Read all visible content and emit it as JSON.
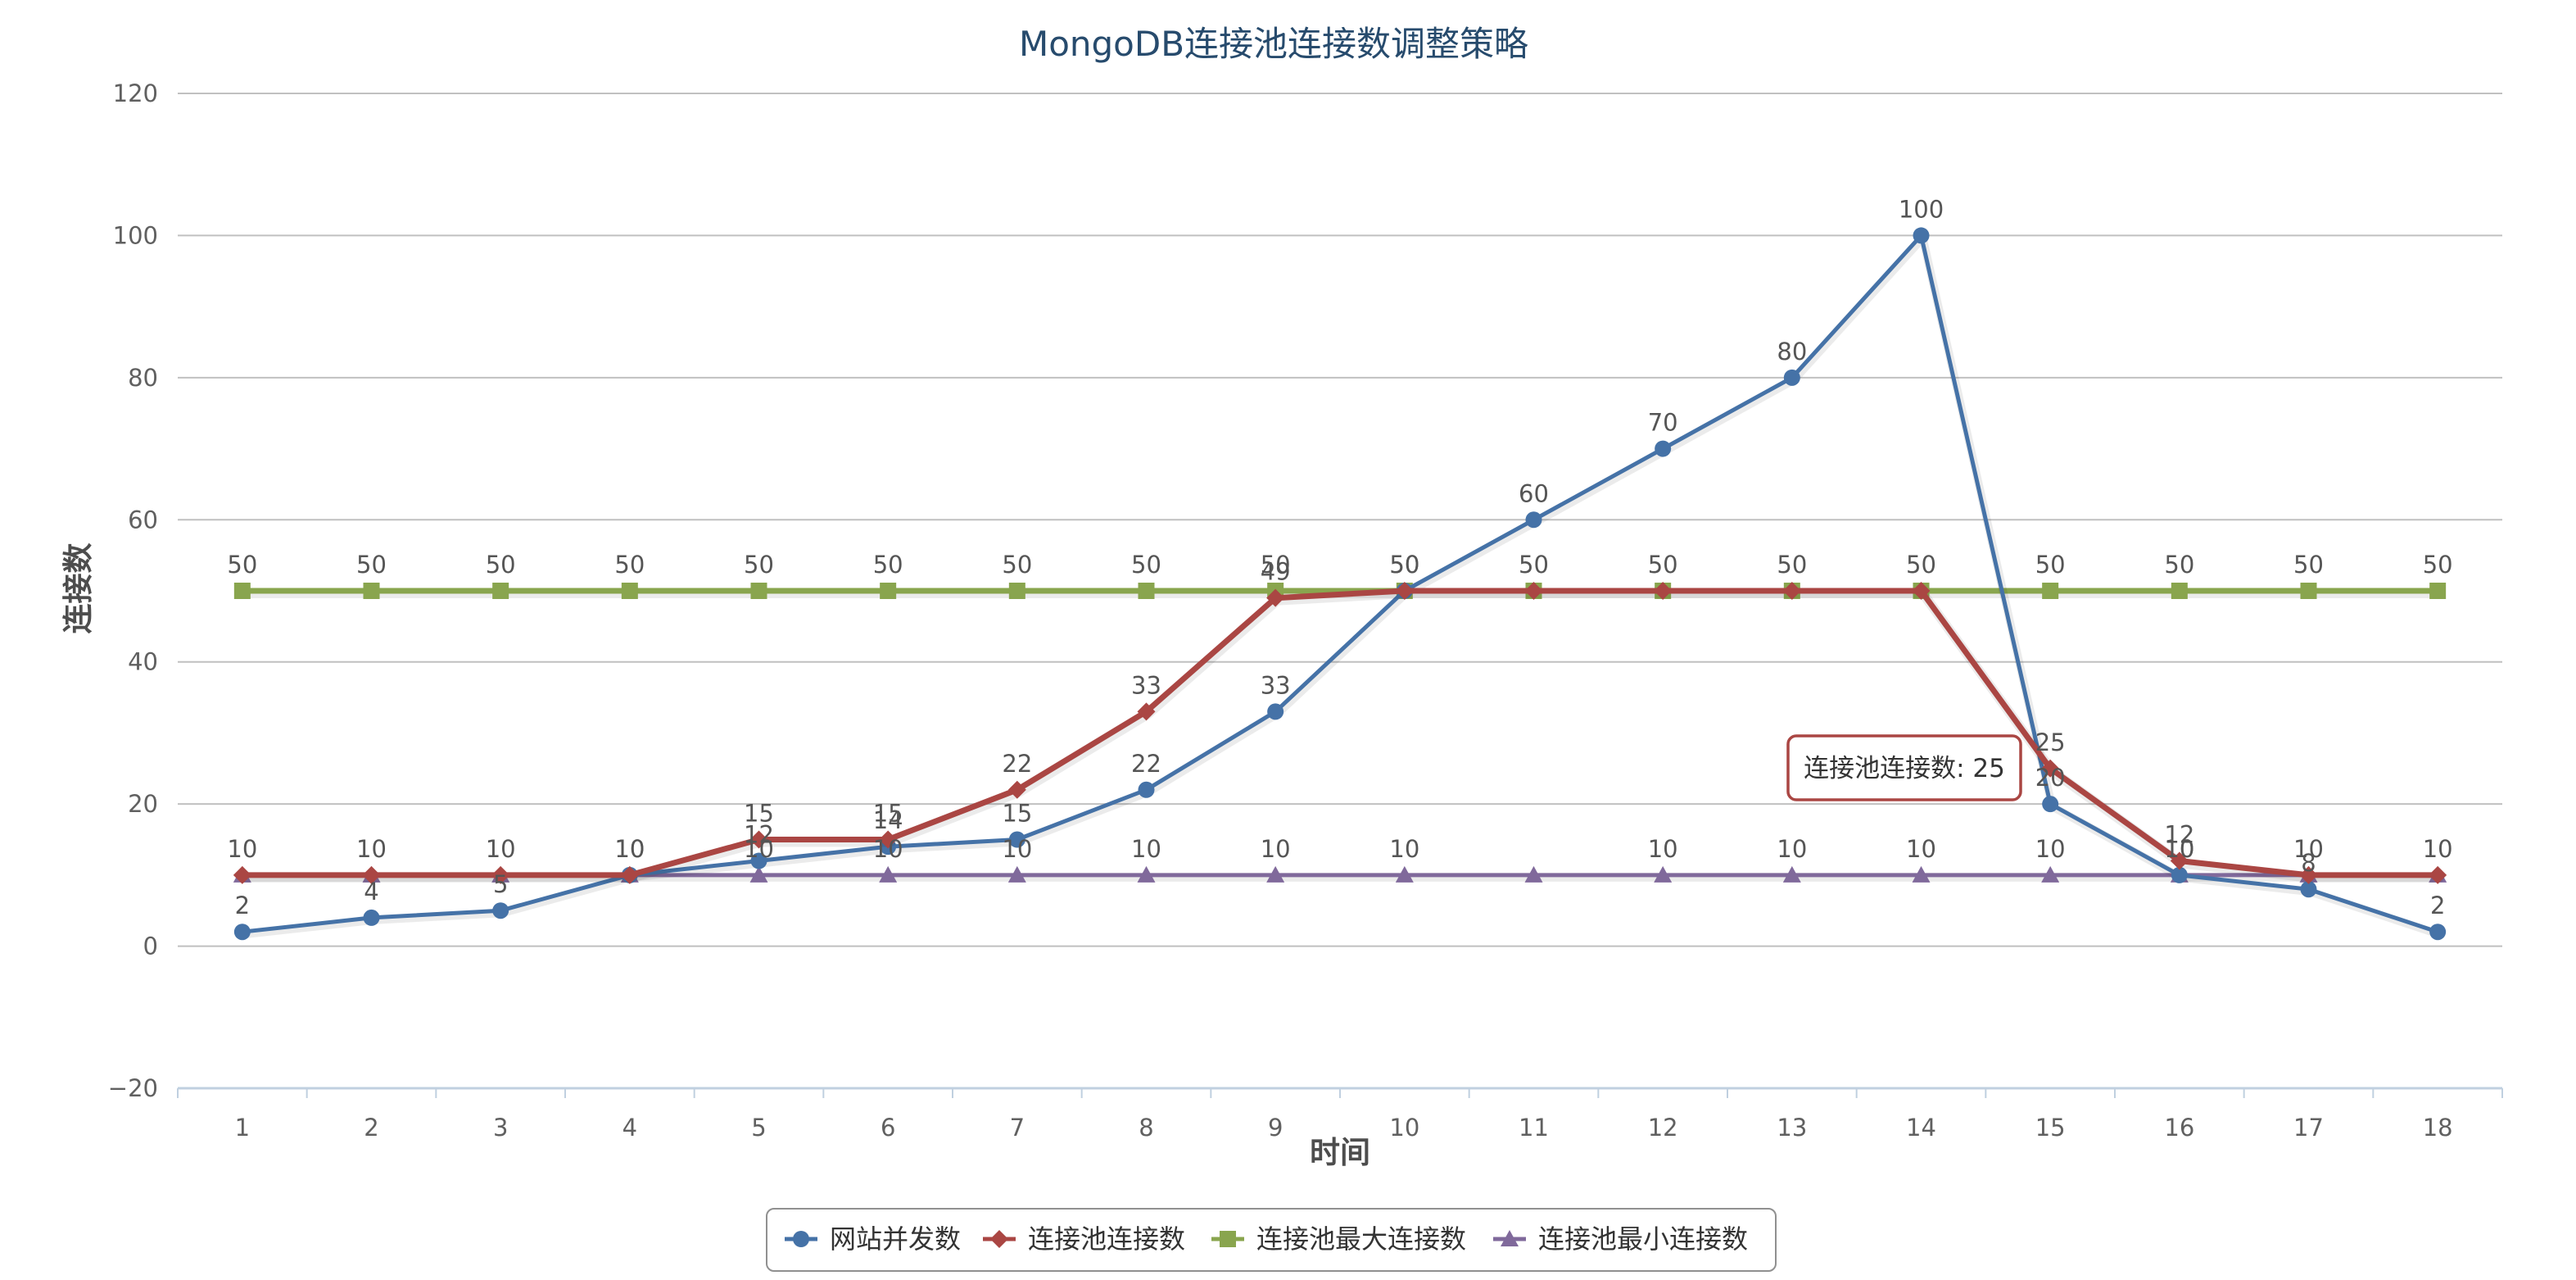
{
  "chart_data": {
    "type": "line",
    "title": "MongoDB连接池连接数调整策略",
    "xlabel": "时间",
    "ylabel": "连接数",
    "categories": [
      "1",
      "2",
      "3",
      "4",
      "5",
      "6",
      "7",
      "8",
      "9",
      "10",
      "11",
      "12",
      "13",
      "14",
      "15",
      "16",
      "17",
      "18"
    ],
    "ylim": [
      -20,
      120
    ],
    "yticks": [
      -20,
      0,
      20,
      40,
      60,
      80,
      100,
      120
    ],
    "grid": true,
    "legend_position": "bottom-center",
    "series": [
      {
        "name": "网站并发数",
        "color": "#4572a7",
        "marker": "circle",
        "values": [
          2,
          4,
          5,
          10,
          12,
          14,
          15,
          22,
          33,
          50,
          60,
          70,
          80,
          100,
          20,
          10,
          8,
          2
        ],
        "labels_shown": [
          true,
          true,
          true,
          true,
          true,
          true,
          true,
          true,
          true,
          true,
          true,
          true,
          true,
          true,
          true,
          true,
          true,
          true
        ]
      },
      {
        "name": "连接池连接数",
        "color": "#aa4643",
        "marker": "diamond",
        "values": [
          10,
          10,
          10,
          10,
          15,
          15,
          22,
          33,
          49,
          50,
          50,
          50,
          50,
          50,
          25,
          12,
          10,
          10
        ],
        "labels_shown": [
          false,
          false,
          false,
          false,
          true,
          true,
          true,
          true,
          true,
          false,
          false,
          false,
          false,
          false,
          true,
          true,
          false,
          false
        ]
      },
      {
        "name": "连接池最大连接数",
        "color": "#89a54e",
        "marker": "square",
        "values": [
          50,
          50,
          50,
          50,
          50,
          50,
          50,
          50,
          50,
          50,
          50,
          50,
          50,
          50,
          50,
          50,
          50,
          50
        ],
        "labels_shown": [
          true,
          true,
          true,
          true,
          true,
          true,
          true,
          true,
          true,
          true,
          true,
          true,
          true,
          true,
          true,
          true,
          true,
          true
        ]
      },
      {
        "name": "连接池最小连接数",
        "color": "#80699b",
        "marker": "triangle",
        "values": [
          10,
          10,
          10,
          10,
          10,
          10,
          10,
          10,
          10,
          10,
          10,
          10,
          10,
          10,
          10,
          10,
          10,
          10
        ],
        "labels_shown": [
          true,
          true,
          true,
          true,
          true,
          true,
          true,
          true,
          true,
          true,
          false,
          true,
          true,
          true,
          true,
          true,
          true,
          true
        ]
      }
    ],
    "tooltip": {
      "series_index": 1,
      "point_index": 14,
      "text": "连接池连接数: 25"
    }
  }
}
